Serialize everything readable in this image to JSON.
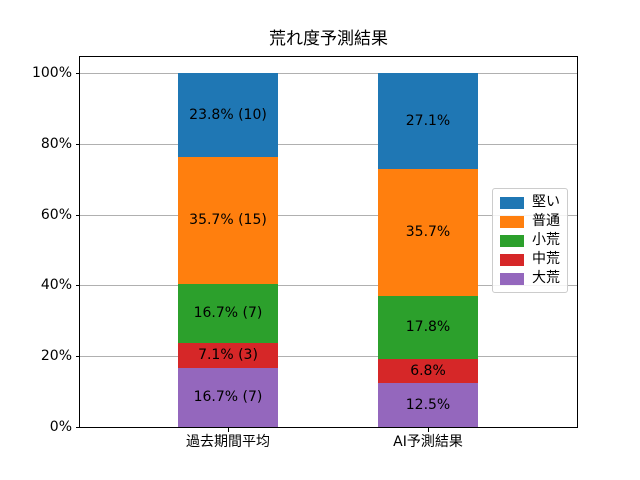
{
  "chart_data": {
    "type": "bar",
    "stacked": true,
    "title": "荒れ度予測結果",
    "categories": [
      "過去期間平均",
      "AI予測結果"
    ],
    "series": [
      {
        "name": "大荒",
        "color": "#9467bd",
        "values": [
          16.7,
          12.5
        ],
        "labels": [
          "16.7% (7)",
          "12.5%"
        ]
      },
      {
        "name": "中荒",
        "color": "#d62728",
        "values": [
          7.1,
          6.8
        ],
        "labels": [
          "7.1% (3)",
          "6.8%"
        ]
      },
      {
        "name": "小荒",
        "color": "#2ca02c",
        "values": [
          16.7,
          17.8
        ],
        "labels": [
          "16.7% (7)",
          "17.8%"
        ]
      },
      {
        "name": "普通",
        "color": "#ff7f0e",
        "values": [
          35.7,
          35.7
        ],
        "labels": [
          "35.7% (15)",
          "35.7%"
        ]
      },
      {
        "name": "堅い",
        "color": "#1f77b4",
        "values": [
          23.8,
          27.1
        ],
        "labels": [
          "23.8% (10)",
          "27.1%"
        ]
      }
    ],
    "legend": {
      "order": [
        "堅い",
        "普通",
        "小荒",
        "中荒",
        "大荒"
      ],
      "position": "center-right"
    },
    "yticks": {
      "values": [
        0,
        20,
        40,
        60,
        80,
        100
      ],
      "labels": [
        "0%",
        "20%",
        "40%",
        "60%",
        "80%",
        "100%"
      ]
    },
    "ylim": [
      0,
      105
    ],
    "xlabel": "",
    "ylabel": "",
    "grid": true,
    "grid_color": "#b0b0b0",
    "background_color": "#ffffff"
  }
}
